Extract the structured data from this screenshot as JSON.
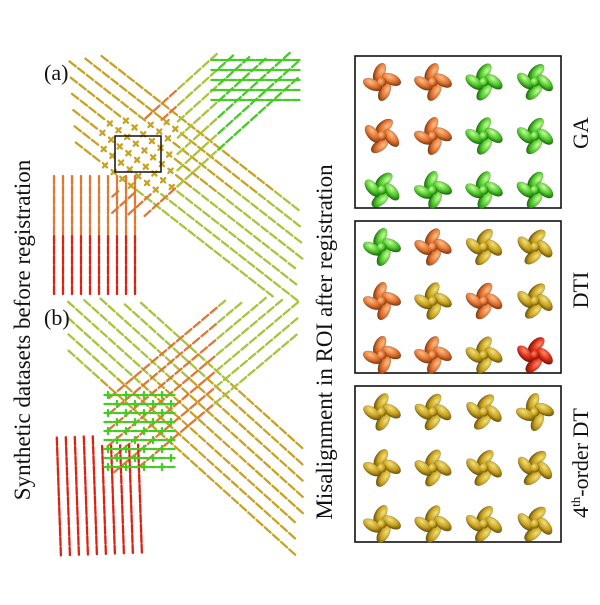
{
  "labels": {
    "left_axis": "Synthetic datasets before registration",
    "middle_axis": "Misalignment in ROI after registration",
    "panel_a": "(a)",
    "panel_b": "(b)",
    "box1": "GA",
    "box2": "DTI",
    "box3_pre": "4",
    "box3_sup": "th",
    "box3_post": "-order DT"
  },
  "colors": {
    "red": "#dd2211",
    "orange": "#e07733",
    "olive": "#c8a321",
    "yellowgreen": "#a9c43a",
    "green": "#44cc22",
    "frame": "#111111"
  },
  "glyph_grids": {
    "GA": [
      "orange",
      "orange",
      "green",
      "green",
      "orange",
      "orange",
      "green",
      "green",
      "green",
      "green",
      "green",
      "green"
    ],
    "DTI": [
      "green",
      "orange",
      "olive",
      "olive",
      "orange",
      "olive",
      "orange",
      "olive",
      "orange",
      "orange",
      "olive",
      "red"
    ],
    "4th-order DT": [
      "olive",
      "olive",
      "olive",
      "olive",
      "olive",
      "olive",
      "olive",
      "olive",
      "olive",
      "olive",
      "olive",
      "olive"
    ]
  }
}
